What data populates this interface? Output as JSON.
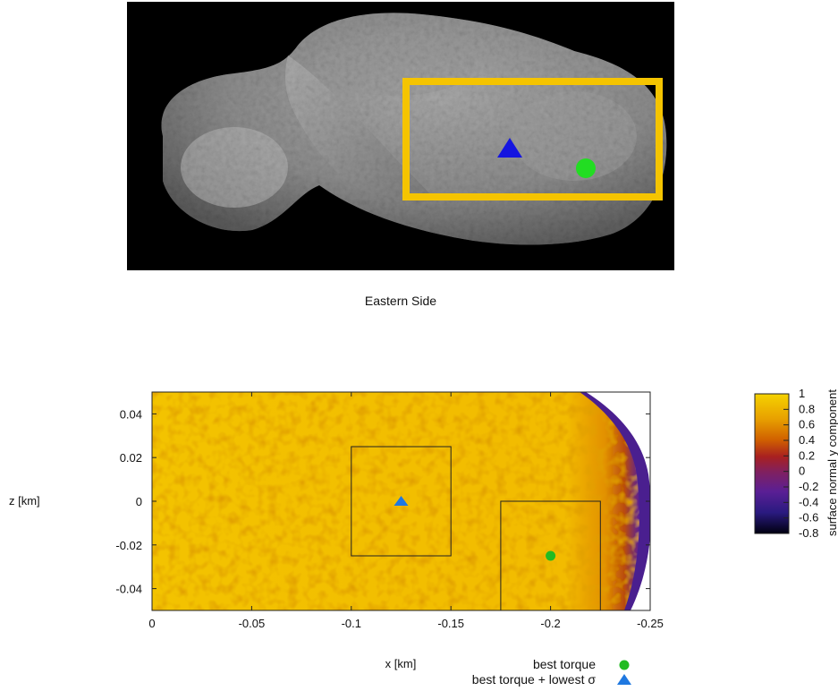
{
  "top_panel": {
    "caption": "Eastern Side",
    "box_color": "#f5c400",
    "marker_triangle_color": "#1515e0",
    "marker_circle_color": "#22dd22"
  },
  "chart_data": {
    "type": "heatmap",
    "xlabel": "x [km]",
    "ylabel": "z [km]",
    "xlim": [
      0,
      -0.25
    ],
    "ylim": [
      -0.05,
      0.05
    ],
    "x_ticks": [
      "0",
      "-0.05",
      "-0.1",
      "-0.15",
      "-0.2",
      "-0.25"
    ],
    "x_tick_values": [
      0,
      -0.05,
      -0.1,
      -0.15,
      -0.2,
      -0.25
    ],
    "y_ticks": [
      "0.04",
      "0.02",
      "0",
      "-0.02",
      "-0.04"
    ],
    "y_tick_values": [
      0.04,
      0.02,
      0,
      -0.02,
      -0.04
    ],
    "colorbar": {
      "label": "surface normal y component",
      "ticks": [
        "1",
        "0.8",
        "0.6",
        "0.4",
        "0.2",
        "0",
        "-0.2",
        "-0.4",
        "-0.6",
        "-0.8"
      ],
      "tick_values": [
        1,
        0.8,
        0.6,
        0.4,
        0.2,
        0,
        -0.2,
        -0.4,
        -0.6,
        -0.8
      ],
      "range": [
        -0.8,
        1
      ]
    },
    "boxes": [
      {
        "x": [
          -0.1,
          -0.15
        ],
        "z": [
          0.025,
          -0.025
        ]
      },
      {
        "x": [
          -0.175,
          -0.225
        ],
        "z": [
          0.0,
          -0.05
        ]
      }
    ],
    "points": [
      {
        "name": "best torque",
        "marker": "circle",
        "color": "#22bb22",
        "x": -0.2,
        "z": -0.025
      },
      {
        "name": "best torque + lowest σ",
        "marker": "triangle",
        "color": "#1f78e0",
        "x": -0.125,
        "z": 0.0
      }
    ],
    "legend_placement": "bottom-right"
  }
}
